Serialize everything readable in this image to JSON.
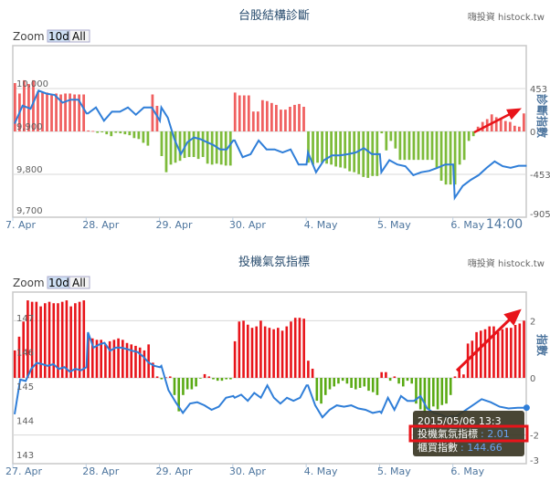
{
  "charts": [
    {
      "title": "台股結構診斷",
      "watermark": "嗨投資 histock.tw",
      "zoom": {
        "label": "Zoom",
        "buttons": [
          "10d",
          "All"
        ],
        "selected": "10d"
      },
      "end_label": "14:00",
      "right_axis_title": "診斷指數",
      "left_ticks": [
        "10,000",
        "9,900",
        "9,800",
        "9,700"
      ],
      "right_ticks": [
        "453",
        "0",
        "-453",
        "-905"
      ],
      "annotation": "red-arrow-up-right"
    },
    {
      "title": "投機氣氛指標",
      "watermark": "嗨投資 histock.tw",
      "zoom": {
        "label": "Zoom",
        "buttons": [
          "10d",
          "All"
        ],
        "selected": "10d"
      },
      "right_axis_title": "指數",
      "left_ticks": [
        "147",
        "146",
        "145",
        "144",
        "143"
      ],
      "right_ticks": [
        "2",
        "0",
        "-2",
        "-3"
      ],
      "annotation": "red-arrow-up-right",
      "tooltip": {
        "date": "2015/05/06 13:3",
        "rows": [
          {
            "label": "投機氣氛指標",
            "value": ": 2.01"
          },
          {
            "label": "櫃買指數",
            "value": ": 144.66"
          }
        ],
        "highlight": "red-box-around-first-row"
      }
    }
  ],
  "chart_data": [
    {
      "type": "bar+line",
      "title": "台股結構診斷",
      "ylabel_right": "診斷指數",
      "x_labels": [
        "7. Apr",
        "28. Apr",
        "29. Apr",
        "30. Apr",
        "4. May",
        "5. May",
        "6. May"
      ],
      "ylim_left": [
        9700,
        10100
      ],
      "ylim_right": [
        -905,
        905
      ],
      "grid": true,
      "colors": {
        "positive": "#f06060",
        "negative": "#7dbb3a",
        "line": "#2f7ed8"
      },
      "bars_by_day": [
        [
          510,
          400,
          540,
          500,
          540,
          420,
          410,
          410,
          390,
          400,
          390,
          400,
          400,
          390,
          390,
          390
        ],
        [
          10,
          5,
          -15,
          -10,
          -30,
          -50,
          -15,
          -20,
          -30,
          -40,
          -70,
          -80,
          -120,
          -150,
          390,
          270
        ],
        [
          -260,
          -430,
          -350,
          -330,
          -310,
          -280,
          -270,
          -270,
          -290,
          -270,
          -340,
          -350,
          -340,
          -350,
          -360,
          -360
        ],
        [
          410,
          380,
          380,
          380,
          210,
          210,
          330,
          320,
          300,
          280,
          230,
          230,
          260,
          280,
          290,
          260
        ],
        [
          -330,
          -350,
          -330,
          -330,
          -340,
          -350,
          -370,
          -380,
          -390,
          -420,
          -430,
          -450,
          -480,
          -490,
          -470,
          -470
        ],
        [
          -20,
          -200,
          -100,
          -180,
          -300,
          -300,
          -300,
          -300,
          -300,
          -300,
          -300,
          -300,
          -380,
          -520,
          -560,
          -560
        ],
        [
          -560,
          -350,
          -300,
          -100,
          -50,
          50,
          100,
          130,
          180,
          150,
          130,
          110,
          100,
          60,
          50,
          190
        ]
      ],
      "line_by_day": [
        [
          9918,
          9960,
          9953,
          9995,
          9988,
          9985,
          9967,
          9974,
          9974,
          9942
        ],
        [
          9942,
          9956,
          9925,
          9946,
          9946,
          9956,
          9939,
          9956,
          9956,
          9925
        ],
        [
          9956,
          9932,
          9882,
          9847,
          9875,
          9886,
          9882,
          9875,
          9868,
          9858,
          9858,
          9879
        ],
        [
          9879,
          9840,
          9847,
          9879,
          9858,
          9858,
          9851,
          9858,
          9823,
          9823
        ],
        [
          9851,
          9805,
          9833,
          9844,
          9844,
          9847,
          9851,
          9861,
          9847,
          9847
        ],
        [
          9805,
          9833,
          9823,
          9819,
          9798,
          9805,
          9808,
          9815,
          9823,
          9823
        ],
        [
          9745,
          9773,
          9787,
          9798,
          9815,
          9830,
          9819,
          9815,
          9820,
          9820
        ]
      ]
    },
    {
      "type": "bar+line",
      "title": "投機氣氛指標",
      "ylabel_right": "指數",
      "x_labels": [
        "27. Apr",
        "28. Apr",
        "29. Apr",
        "30. Apr",
        "4. May",
        "5. May",
        "6. May"
      ],
      "ylim_left": [
        142.9,
        147.9
      ],
      "ylim_right": [
        -3,
        3
      ],
      "grid": true,
      "colors": {
        "positive": "#e8141a",
        "negative": "#5aaa14",
        "line": "#2f7ed8"
      },
      "bars_by_day": [
        [
          0.96,
          1.44,
          1.97,
          2.71,
          2.66,
          2.66,
          2.5,
          2.61,
          2.66,
          2.61,
          2.61,
          2.66,
          2.71,
          2.5,
          2.61,
          2.66,
          2.71
        ],
        [
          1.54,
          1.38,
          1.33,
          1.33,
          1.17,
          1.28,
          1.33,
          1.38,
          1.33,
          1.22,
          1.17,
          1.12,
          1.06,
          0.96,
          1.17,
          0.53,
          0.05
        ],
        [
          -0.05,
          0.02,
          0.05,
          -0.6,
          -1.17,
          -0.6,
          -0.4,
          -0.4,
          -0.3,
          -0.02,
          0.13,
          0.05,
          -0.05,
          -0.1,
          -0.1,
          -0.05,
          -0.05
        ],
        [
          1.28,
          1.97,
          2.0,
          1.86,
          1.75,
          1.8,
          2.0,
          1.8,
          1.75,
          1.7,
          1.75,
          1.65,
          1.8,
          1.97,
          2.1,
          2.1,
          2.07
        ],
        [
          0.6,
          0.32,
          -0.8,
          -0.9,
          -0.6,
          -0.4,
          -0.3,
          -0.2,
          -0.1,
          -0.2,
          -0.35,
          -0.4,
          -0.35,
          -0.3,
          -0.45,
          -0.5,
          -0.6
        ],
        [
          0.2,
          0.2,
          -0.1,
          0.05,
          -0.2,
          -0.3,
          -0.1,
          -0.2,
          -0.9,
          -1.1,
          -1.2,
          -1.1,
          -1.0,
          -1.1,
          -0.95,
          -0.9,
          -0.6
        ],
        [
          0.05,
          0.35,
          0.12,
          1.2,
          1.3,
          1.6,
          1.65,
          1.7,
          1.8,
          1.8,
          1.6,
          1.7,
          1.75,
          1.75,
          1.85,
          1.9,
          2.0
        ]
      ],
      "line_by_day": [
        [
          144.34,
          145.35,
          145.31,
          145.66,
          145.84,
          145.8,
          145.75,
          145.8,
          145.66,
          145.71,
          145.58,
          145.66,
          145.62,
          145.71
        ],
        [
          146.73,
          146.28,
          146.37,
          146.42,
          146.19,
          146.28,
          146.28,
          146.24,
          146.19,
          146.15,
          146.02,
          145.84,
          145.75,
          145.71
        ],
        [
          145.75,
          145.04,
          144.69,
          144.38,
          144.65,
          144.69,
          144.6,
          144.47,
          144.56,
          144.82,
          144.87
        ],
        [
          144.82,
          144.91,
          144.73,
          144.96,
          144.82,
          145.18,
          144.82,
          144.65,
          144.82,
          144.73,
          144.82,
          145.18
        ],
        [
          145.18,
          144.6,
          144.25,
          144.47,
          144.6,
          144.56,
          144.6,
          144.51,
          144.47,
          144.38,
          144.42
        ],
        [
          144.38,
          144.82,
          144.47,
          144.87,
          144.73,
          144.73,
          144.87,
          144.51,
          144.38,
          144.34,
          144.25,
          144.29
        ],
        [
          144.25,
          144.42,
          144.6,
          144.78,
          144.69,
          144.56,
          144.51,
          144.53,
          144.53
        ]
      ]
    }
  ]
}
